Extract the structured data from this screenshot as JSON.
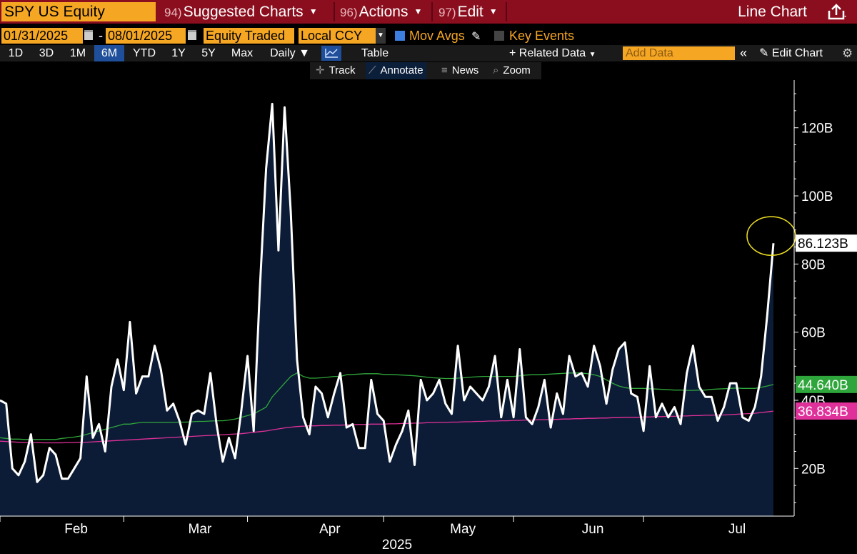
{
  "header": {
    "ticker": "SPY US Equity",
    "menus": [
      {
        "num": "94)",
        "label": "Suggested Charts"
      },
      {
        "num": "96)",
        "label": "Actions"
      },
      {
        "num": "97)",
        "label": "Edit"
      }
    ],
    "chart_type": "Line Chart"
  },
  "controls": {
    "start_date": "01/31/2025",
    "date_sep": "-",
    "end_date": "08/01/2025",
    "field": "Equity Traded",
    "currency": "Local CCY",
    "mov_avgs": "Mov Avgs",
    "key_events": "Key Events"
  },
  "periods": {
    "items": [
      "1D",
      "3D",
      "1M",
      "6M",
      "YTD",
      "1Y",
      "5Y",
      "Max"
    ],
    "active": "6M",
    "frequency": "Daily",
    "table": "Table",
    "related_data": "Related Data",
    "add_data_placeholder": "Add Data",
    "edit_chart": "Edit Chart"
  },
  "tools": [
    {
      "icon": "✛",
      "label": "Track"
    },
    {
      "icon": "⟋",
      "label": "Annotate"
    },
    {
      "icon": "≡",
      "label": "News"
    },
    {
      "icon": "⌕",
      "label": "Zoom"
    }
  ],
  "chart_data": {
    "type": "line",
    "y_unit": "B",
    "ylim": [
      6,
      134
    ],
    "yticks": [
      {
        "value": 20,
        "label": "20B"
      },
      {
        "value": 40,
        "label": "40B"
      },
      {
        "value": 60,
        "label": "60B"
      },
      {
        "value": 80,
        "label": "80B"
      },
      {
        "value": 100,
        "label": "100B"
      },
      {
        "value": 120,
        "label": "120B"
      }
    ],
    "x_ticks": [
      "Feb",
      "Mar",
      "Apr",
      "May",
      "Jun",
      "Jul"
    ],
    "x_year": "2025",
    "grid": false,
    "series": [
      {
        "color": "#ffffff",
        "fill": "#0c1c36",
        "values": [
          40,
          39,
          20,
          18,
          22,
          30,
          16,
          18,
          26,
          24,
          17,
          17,
          20,
          23,
          47,
          29,
          33,
          25,
          44,
          52,
          43,
          63,
          42,
          47,
          47,
          56,
          49,
          37,
          39,
          34,
          27,
          36,
          37,
          36,
          48,
          33,
          22,
          29,
          23,
          37,
          53,
          31,
          73,
          108,
          127,
          84,
          126,
          95,
          52,
          35,
          30,
          44,
          42,
          35,
          42,
          48,
          32,
          33,
          26,
          26,
          46,
          36,
          34,
          22,
          27,
          31,
          37,
          21,
          46,
          40,
          42,
          46,
          39,
          36,
          56,
          40,
          44,
          42,
          40,
          44,
          53,
          35,
          46,
          35,
          55,
          35,
          33,
          38,
          46,
          32,
          42,
          36,
          53,
          47,
          48,
          44,
          56,
          50,
          39,
          49,
          55,
          57,
          42,
          41,
          31,
          50,
          35,
          39,
          35,
          38,
          33,
          48,
          56,
          44,
          41,
          41,
          34,
          38,
          45,
          45,
          35,
          34,
          38,
          47,
          65,
          86.123
        ],
        "last_label": "86.123B"
      },
      {
        "color": "#2fa63b",
        "values": [
          29,
          28.8,
          28.6,
          28.6,
          28.5,
          28.5,
          28.5,
          28.5,
          28.5,
          28.5,
          28.8,
          29,
          29.2,
          29.5,
          30,
          30.5,
          31,
          31.5,
          32,
          32.5,
          33,
          33,
          33.3,
          33.5,
          33.5,
          33.5,
          33.5,
          33.5,
          33.5,
          33.6,
          33.6,
          33.7,
          33.8,
          33.8,
          33.9,
          34,
          34,
          34.2,
          34.5,
          35,
          35.5,
          36,
          37,
          38,
          41,
          43,
          45,
          47,
          48,
          47,
          46.5,
          46.5,
          46.6,
          46.8,
          47,
          47,
          47.5,
          47.6,
          47.7,
          47.8,
          47.8,
          47.8,
          47.6,
          47.6,
          47.5,
          47.4,
          47.3,
          47.2,
          47,
          46.8,
          46.6,
          46.5,
          46.4,
          46.4,
          46.5,
          46.6,
          46.8,
          46.9,
          47,
          47,
          47,
          47,
          47,
          47,
          47.2,
          47.4,
          47.5,
          47.5,
          47.6,
          47.7,
          47.8,
          47.9,
          48,
          48,
          48,
          47.8,
          47.5,
          47,
          46,
          45,
          44.2,
          43.7,
          43.5,
          43.5,
          43.5,
          43.4,
          43.3,
          43.2,
          43.1,
          43,
          43,
          42.9,
          42.9,
          43,
          43,
          43.2,
          43.3,
          43.4,
          43.5,
          43.6,
          43.5,
          43.5,
          43.5,
          43.8,
          44.2,
          44.64
        ],
        "last_label": "44.640B"
      },
      {
        "color": "#e0309a",
        "values": [
          28,
          27.9,
          27.8,
          27.7,
          27.6,
          27.6,
          27.6,
          27.5,
          27.5,
          27.5,
          27.5,
          27.6,
          27.6,
          27.7,
          27.7,
          27.8,
          27.9,
          28,
          28.1,
          28.2,
          28.3,
          28.4,
          28.5,
          28.6,
          28.7,
          28.8,
          28.9,
          29,
          29.1,
          29.2,
          29.3,
          29.4,
          29.5,
          29.6,
          29.7,
          29.8,
          29.9,
          30,
          30.1,
          30.2,
          30.4,
          30.6,
          30.8,
          31,
          31.3,
          31.6,
          31.9,
          32.1,
          32.3,
          32.4,
          32.5,
          32.5,
          32.6,
          32.6,
          32.7,
          32.7,
          32.8,
          32.8,
          32.9,
          32.9,
          33,
          33,
          33,
          33.1,
          33.1,
          33.2,
          33.2,
          33.3,
          33.3,
          33.4,
          33.4,
          33.5,
          33.5,
          33.6,
          33.6,
          33.7,
          33.7,
          33.8,
          33.8,
          33.9,
          33.9,
          34,
          34,
          34.1,
          34.1,
          34.2,
          34.2,
          34.3,
          34.3,
          34.4,
          34.4,
          34.5,
          34.5,
          34.6,
          34.6,
          34.7,
          34.7,
          34.8,
          34.8,
          34.9,
          34.9,
          35,
          35,
          35,
          35.1,
          35.1,
          35.2,
          35.2,
          35.3,
          35.3,
          35.4,
          35.4,
          35.5,
          35.5,
          35.6,
          35.6,
          35.7,
          35.7,
          35.8,
          35.9,
          36,
          36.1,
          36.2,
          36.4,
          36.6,
          36.834
        ],
        "last_label": "36.834B"
      }
    ]
  }
}
